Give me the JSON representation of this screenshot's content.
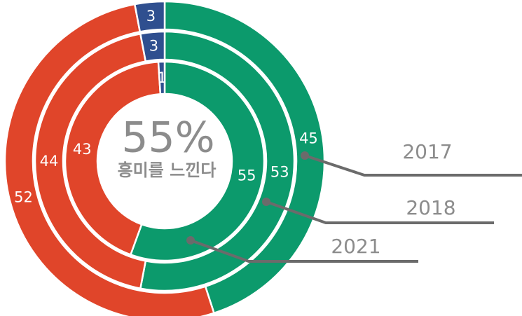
{
  "chart_data": {
    "type": "donut",
    "annotation": "55%",
    "subtitle": "흥미를 느낀다",
    "colors": [
      "#0c9a6c",
      "#e0452a",
      "#2f4f8f"
    ],
    "series": [
      {
        "name": "2017",
        "values": [
          45,
          52,
          3
        ]
      },
      {
        "name": "2018",
        "values": [
          53,
          44,
          3
        ]
      },
      {
        "name": "2021",
        "values": [
          55,
          43,
          1
        ]
      }
    ]
  }
}
